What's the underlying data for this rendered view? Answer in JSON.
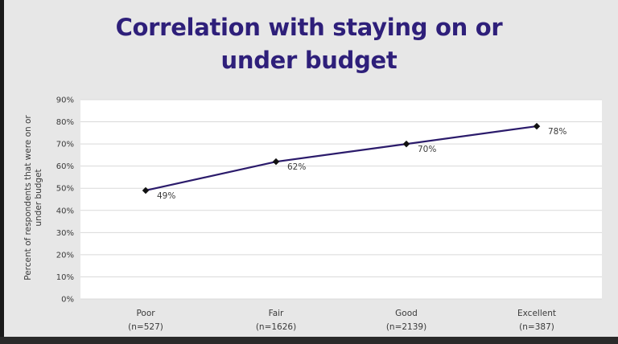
{
  "chart_data": {
    "type": "line",
    "title_lines": [
      "Correlation with staying on or",
      "under budget"
    ],
    "xlabel": "",
    "ylabel_lines": [
      "Percent of respondents that were on or",
      "under budget"
    ],
    "categories": [
      "Poor",
      "Fair",
      "Good",
      "Excellent"
    ],
    "category_sublabels": [
      "(n=527)",
      "(n=1626)",
      "(n=2139)",
      "(n=387)"
    ],
    "series": [
      {
        "values": [
          49,
          62,
          70,
          78
        ],
        "data_labels": [
          "49%",
          "62%",
          "70%",
          "78%"
        ]
      }
    ],
    "ylim": [
      0,
      90
    ],
    "yticks": [
      0,
      10,
      20,
      30,
      40,
      50,
      60,
      70,
      80,
      90
    ],
    "ytick_labels": [
      "0%",
      "10%",
      "20%",
      "30%",
      "40%",
      "50%",
      "60%",
      "70%",
      "80%",
      "90%"
    ],
    "grid": true,
    "legend": "none",
    "colors": {
      "line": "#2b1b6b",
      "title": "#2e1f7a",
      "grid": "#d9d9d9",
      "plot_bg": "#ffffff",
      "page_bg": "#e7e7e7"
    }
  }
}
